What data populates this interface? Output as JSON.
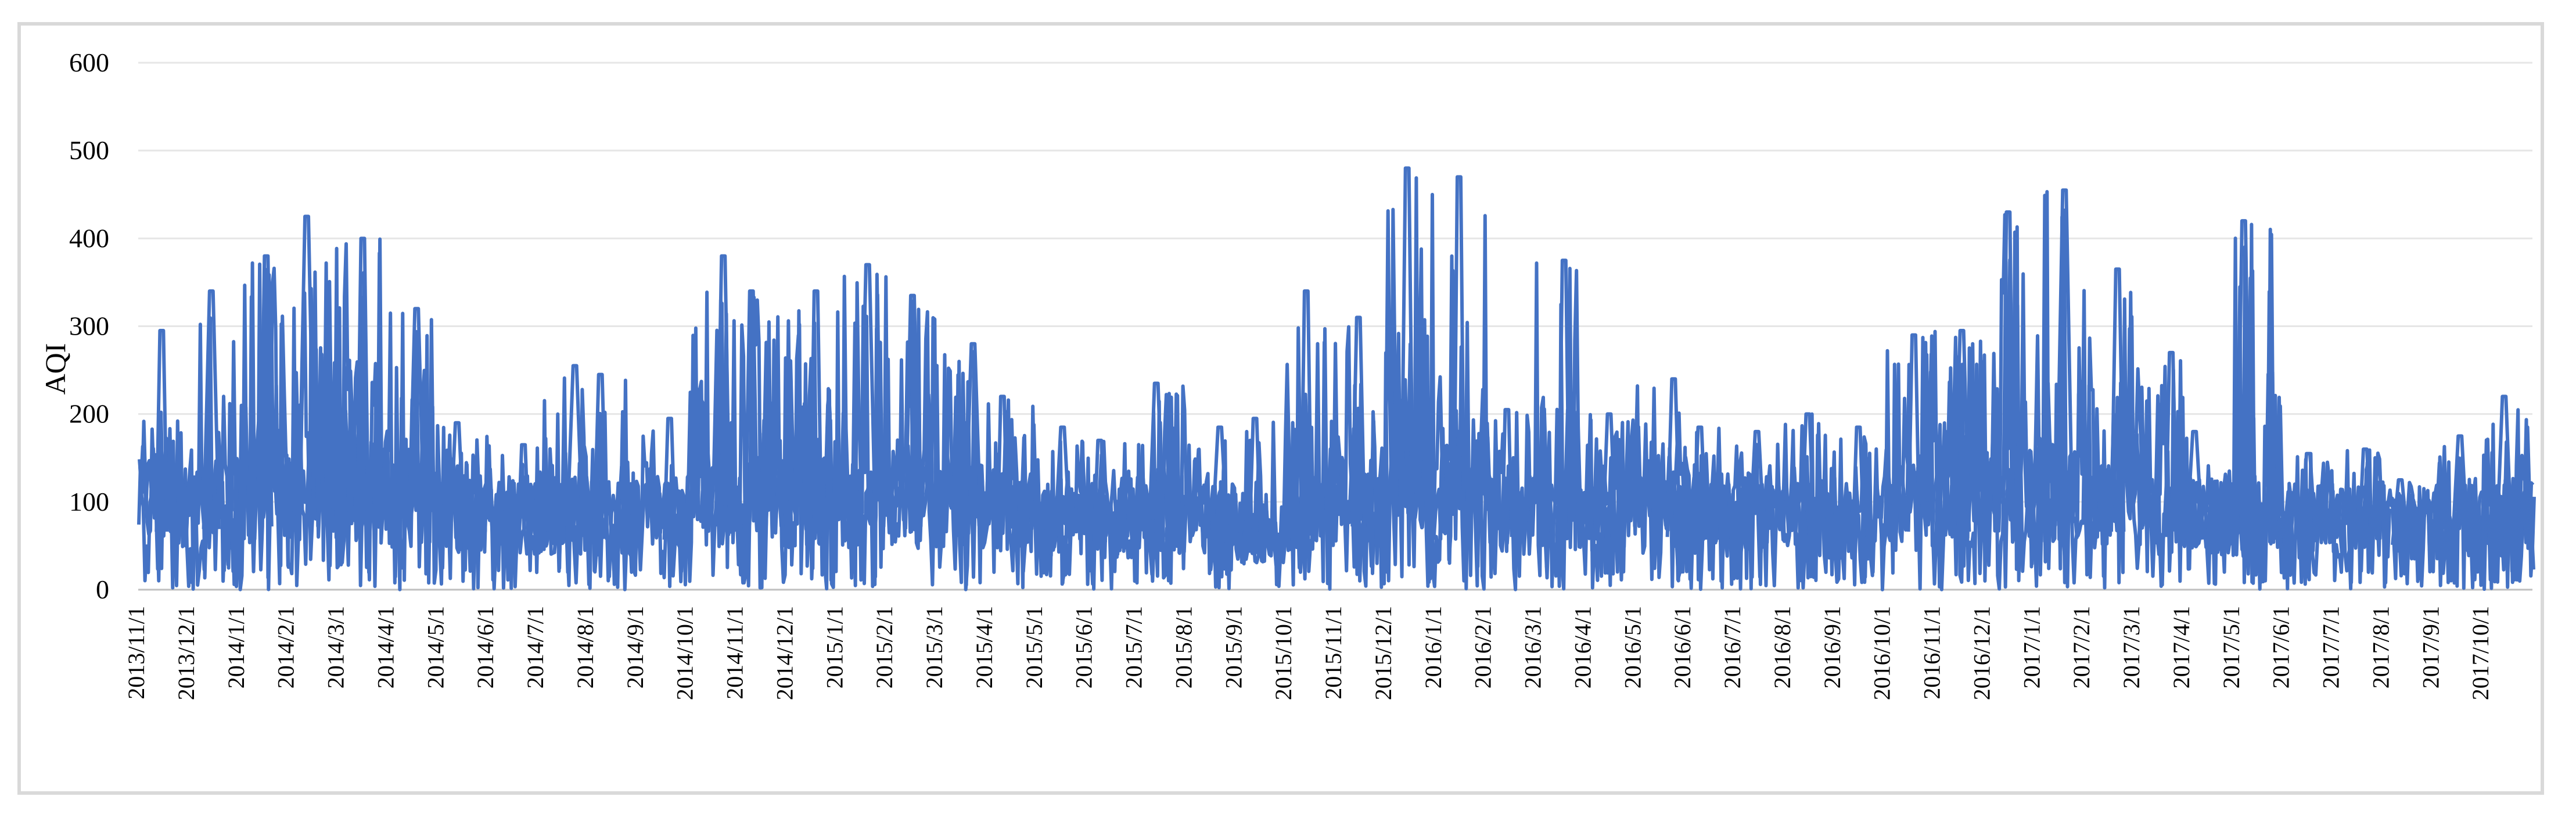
{
  "chart_data": {
    "type": "line",
    "title": "",
    "xlabel": "",
    "ylabel": "AQI",
    "ylim": [
      0,
      600
    ],
    "yticks": [
      0,
      100,
      200,
      300,
      400,
      500,
      600
    ],
    "grid": "horizontal",
    "legend": "none",
    "series_color": "#4472C4",
    "x_ticks": [
      "2013/11/1",
      "2013/12/1",
      "2014/1/1",
      "2014/2/1",
      "2014/3/1",
      "2014/4/1",
      "2014/5/1",
      "2014/6/1",
      "2014/7/1",
      "2014/8/1",
      "2014/9/1",
      "2014/10/1",
      "2014/11/1",
      "2014/12/1",
      "2015/1/1",
      "2015/2/1",
      "2015/3/1",
      "2015/4/1",
      "2015/5/1",
      "2015/6/1",
      "2015/7/1",
      "2015/8/1",
      "2015/9/1",
      "2015/10/1",
      "2015/11/1",
      "2015/12/1",
      "2016/1/1",
      "2016/2/1",
      "2016/3/1",
      "2016/4/1",
      "2016/5/1",
      "2016/6/1",
      "2016/7/1",
      "2016/8/1",
      "2016/9/1",
      "2016/10/1",
      "2016/11/1",
      "2016/12/1",
      "2017/1/1",
      "2017/2/1",
      "2017/3/1",
      "2017/4/1",
      "2017/5/1",
      "2017/6/1",
      "2017/7/1",
      "2017/8/1",
      "2017/9/1",
      "2017/10/1"
    ],
    "monthly_peak_aqi": [
      295,
      340,
      380,
      425,
      400,
      320,
      190,
      165,
      255,
      245,
      195,
      380,
      340,
      340,
      370,
      335,
      280,
      220,
      185,
      170,
      235,
      185,
      195,
      340,
      310,
      480,
      470,
      205,
      375,
      200,
      240,
      185,
      180,
      200,
      185,
      290,
      295,
      430,
      455,
      365,
      270,
      180,
      420,
      155,
      160,
      125,
      175,
      220
    ],
    "monthly_typical_aqi": [
      110,
      115,
      120,
      140,
      130,
      120,
      100,
      95,
      100,
      95,
      95,
      120,
      115,
      120,
      115,
      115,
      110,
      105,
      95,
      90,
      100,
      95,
      70,
      110,
      120,
      140,
      140,
      100,
      110,
      105,
      100,
      95,
      95,
      90,
      85,
      110,
      110,
      125,
      130,
      110,
      100,
      95,
      95,
      90,
      90,
      85,
      85,
      95
    ]
  }
}
